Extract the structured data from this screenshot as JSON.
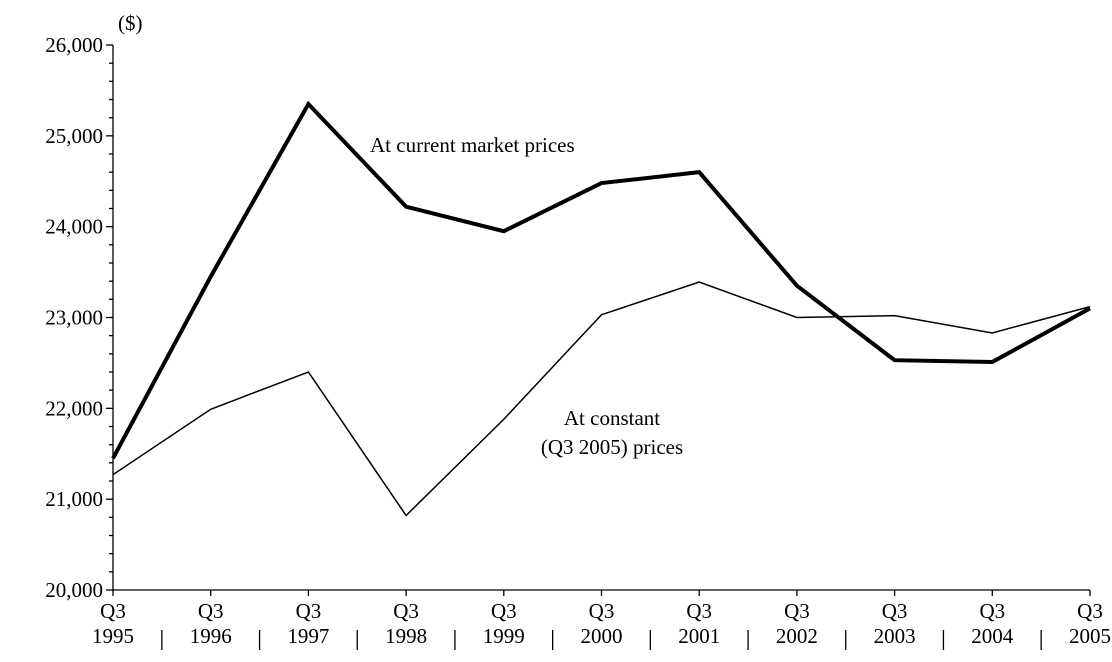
{
  "chart_data": {
    "type": "line",
    "unit_label": "($)",
    "categories": [
      "Q3 1995",
      "Q3 1996",
      "Q3 1997",
      "Q3 1998",
      "Q3 1999",
      "Q3 2000",
      "Q3 2001",
      "Q3 2002",
      "Q3 2003",
      "Q3 2004",
      "Q3 2005"
    ],
    "series": [
      {
        "name": "At current market prices",
        "color": "#000000",
        "width": 4,
        "values": [
          21450,
          23450,
          25350,
          24220,
          23950,
          24480,
          24600,
          23350,
          22530,
          22510,
          23100
        ]
      },
      {
        "name": "At constant (Q3 2005) prices",
        "color": "#000000",
        "width": 1.5,
        "values": [
          21270,
          21990,
          22400,
          20820,
          21880,
          23030,
          23390,
          23000,
          23020,
          22830,
          23120
        ]
      }
    ],
    "annotations": [
      "At current market prices",
      "At constant",
      "(Q3 2005) prices"
    ],
    "ylim": [
      20000,
      26000
    ],
    "yticks": [
      {
        "value": 20000,
        "label": "20,000"
      },
      {
        "value": 21000,
        "label": "21,000"
      },
      {
        "value": 22000,
        "label": "22,000"
      },
      {
        "value": 23000,
        "label": "23,000"
      },
      {
        "value": 24000,
        "label": "24,000"
      },
      {
        "value": 25000,
        "label": "25,000"
      },
      {
        "value": 26000,
        "label": "26,000"
      }
    ],
    "grid": false
  }
}
